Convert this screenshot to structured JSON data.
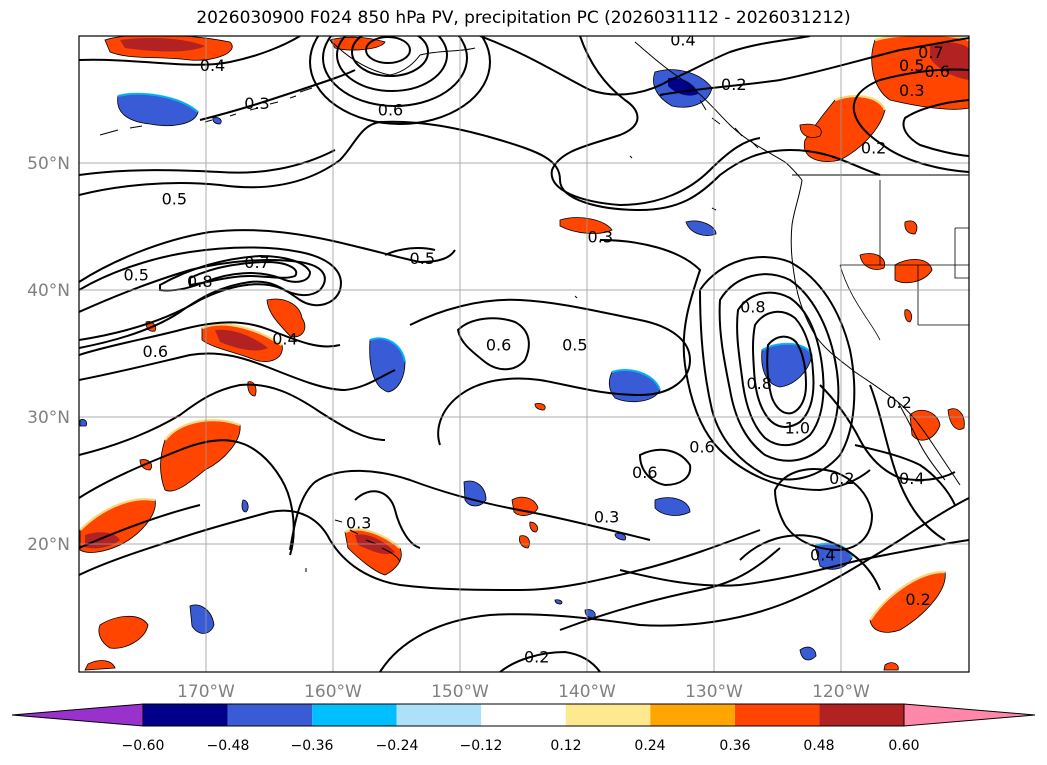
{
  "title": "2026030900 F024 850 hPa PV, precipitation PC (2026031112 - 2026031212)",
  "map": {
    "lon_ticks": [
      "170°W",
      "160°W",
      "150°W",
      "140°W",
      "130°W",
      "120°W"
    ],
    "lat_ticks": [
      "50°N",
      "40°N",
      "30°N",
      "20°N"
    ],
    "grid": true,
    "contour_labels": [
      {
        "text": "0.4",
        "lon": -169.5,
        "lat": 57.5
      },
      {
        "text": "0.3",
        "lon": -166.0,
        "lat": 54.5
      },
      {
        "text": "0.6",
        "lon": -155.5,
        "lat": 54.0
      },
      {
        "text": "0.4",
        "lon": -132.5,
        "lat": 59.5
      },
      {
        "text": "0.2",
        "lon": -128.5,
        "lat": 56.0
      },
      {
        "text": "0.7",
        "lon": -113.0,
        "lat": 58.5
      },
      {
        "text": "0.5",
        "lon": -114.5,
        "lat": 57.5
      },
      {
        "text": "0.6",
        "lon": -112.5,
        "lat": 57.0
      },
      {
        "text": "0.3",
        "lon": -114.5,
        "lat": 55.5
      },
      {
        "text": "0.2",
        "lon": -117.5,
        "lat": 51.0
      },
      {
        "text": "0.5",
        "lon": -172.5,
        "lat": 47.0
      },
      {
        "text": "0.3",
        "lon": -139.0,
        "lat": 44.0
      },
      {
        "text": "0.5",
        "lon": -153.0,
        "lat": 42.3
      },
      {
        "text": "0.5",
        "lon": -175.5,
        "lat": 41.0
      },
      {
        "text": "0.8",
        "lon": -170.5,
        "lat": 40.5
      },
      {
        "text": "0.7",
        "lon": -166.0,
        "lat": 42.0
      },
      {
        "text": "0.4",
        "lon": -163.8,
        "lat": 36.0
      },
      {
        "text": "0.6",
        "lon": -174.0,
        "lat": 35.0
      },
      {
        "text": "0.6",
        "lon": -147.0,
        "lat": 35.5
      },
      {
        "text": "0.5",
        "lon": -141.0,
        "lat": 35.5
      },
      {
        "text": "0.8",
        "lon": -127.0,
        "lat": 38.5
      },
      {
        "text": "0.8",
        "lon": -126.5,
        "lat": 32.5
      },
      {
        "text": "1.0",
        "lon": -123.5,
        "lat": 29.0
      },
      {
        "text": "0.6",
        "lon": -131.0,
        "lat": 27.5
      },
      {
        "text": "0.6",
        "lon": -135.5,
        "lat": 25.5
      },
      {
        "text": "0.2",
        "lon": -120.0,
        "lat": 25.0
      },
      {
        "text": "0.4",
        "lon": -114.5,
        "lat": 25.0
      },
      {
        "text": "0.2",
        "lon": -115.5,
        "lat": 31.0
      },
      {
        "text": "0.3",
        "lon": -138.5,
        "lat": 22.0
      },
      {
        "text": "0.3",
        "lon": -158.0,
        "lat": 21.5
      },
      {
        "text": "0.4",
        "lon": -121.5,
        "lat": 19.0
      },
      {
        "text": "0.2",
        "lon": -114.0,
        "lat": 15.5
      },
      {
        "text": "0.2",
        "lon": -144.0,
        "lat": 11.0
      }
    ]
  },
  "colorbar": {
    "tick_labels": [
      "−0.60",
      "−0.48",
      "−0.36",
      "−0.24",
      "−0.12",
      "0.12",
      "0.24",
      "0.36",
      "0.48",
      "0.60"
    ],
    "colors": [
      "#9932cc",
      "#00008b",
      "#3a5bd6",
      "#00bfff",
      "#ade1fa",
      "#ffffff",
      "#ffe98f",
      "#ffa500",
      "#ff4500",
      "#b22222",
      "#ff88aa"
    ]
  }
}
